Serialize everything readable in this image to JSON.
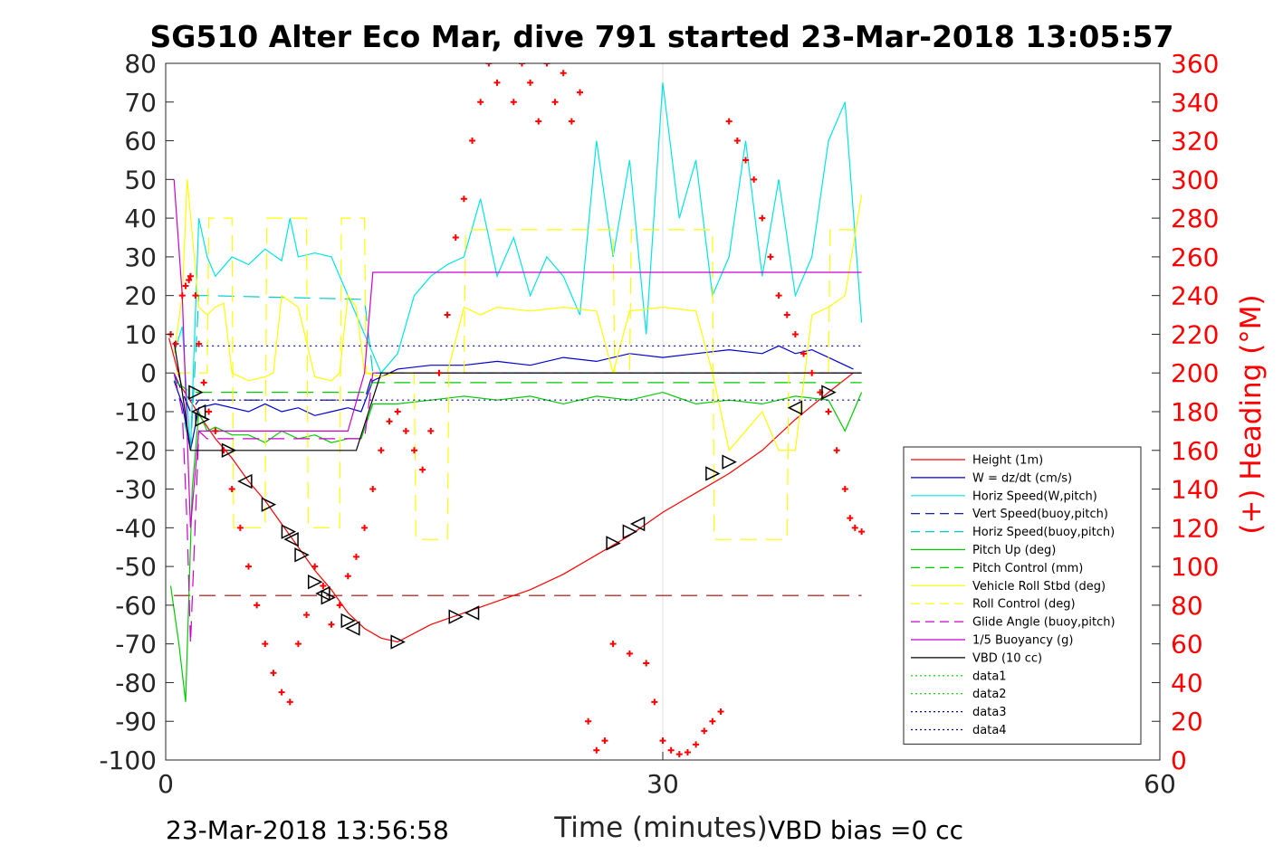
{
  "chart_data": {
    "type": "line",
    "title": "SG510 Alter Eco Mar, dive 791 started 23-Mar-2018 13:05:57",
    "xlabel": "Time (minutes)",
    "ylabel_right": "(+) Heading (°M)",
    "xlim": [
      0,
      60
    ],
    "ylim": [
      -100,
      80
    ],
    "ylim_right": [
      0,
      360
    ],
    "x_ticks": [
      "0",
      "30",
      "60"
    ],
    "y_ticks": [
      "80",
      "70",
      "60",
      "50",
      "40",
      "30",
      "20",
      "10",
      "0",
      "-10",
      "-20",
      "-30",
      "-40",
      "-50",
      "-60",
      "-70",
      "-80",
      "-90",
      "-100"
    ],
    "y_ticks_right": [
      "360",
      "340",
      "320",
      "300",
      "280",
      "260",
      "240",
      "220",
      "200",
      "180",
      "160",
      "140",
      "120",
      "100",
      "80",
      "60",
      "40",
      "20",
      "0"
    ],
    "grid": "x only at 30",
    "legend_position": "bottom-right",
    "footer_left": "23-Mar-2018 13:56:58",
    "footer_right": "VBD bias =0 cc",
    "series": [
      {
        "name": "Height (1m)",
        "color": "#ff0000",
        "style": "solid",
        "x": [
          0.2,
          1.0,
          1.6,
          2.2,
          3.0,
          4.0,
          5.0,
          6.0,
          7.0,
          8.0,
          9.0,
          10.0,
          11.0,
          12.0,
          13.0,
          14.0,
          16.0,
          18.0,
          20.0,
          22.0,
          24.0,
          26.0,
          28.0,
          30.0,
          32.0,
          34.0,
          36.0,
          38.0,
          40.0,
          41.5
        ],
        "y": [
          9,
          -4,
          -8,
          -12,
          -17,
          -22,
          -28,
          -33,
          -39,
          -45,
          -51,
          -56,
          -62,
          -66,
          -68.5,
          -69.5,
          -65,
          -62,
          -59,
          -56,
          -52,
          -47,
          -42,
          -36,
          -31,
          -26,
          -20,
          -12,
          -5,
          0
        ]
      },
      {
        "name": "W = dz/dt (cm/s)",
        "color": "#0000cc",
        "style": "solid",
        "x": [
          0.5,
          1.0,
          1.5,
          2.0,
          3.0,
          4.0,
          5.0,
          6.0,
          7.0,
          8.0,
          9.0,
          10.0,
          11.0,
          11.8,
          12.5,
          14.0,
          16.0,
          18.0,
          20.0,
          22.0,
          24.0,
          26.0,
          28.0,
          30.0,
          32.0,
          34.0,
          36.0,
          37.0,
          38.0,
          39.0,
          40.0,
          41.5
        ],
        "y": [
          -2,
          -8,
          -20,
          -9,
          -8,
          -9,
          -10,
          -8,
          -10,
          -9,
          -11,
          -10,
          -9,
          -10,
          -2,
          1,
          2,
          2,
          3,
          2,
          4,
          3,
          5,
          4,
          5,
          6,
          5,
          7,
          5,
          6,
          4,
          1
        ]
      },
      {
        "name": "Horiz Speed(W,pitch)",
        "color": "#00e5e5",
        "style": "solid",
        "x": [
          0.5,
          1.0,
          1.5,
          2.0,
          2.5,
          3.0,
          4.0,
          5.0,
          6.0,
          7.0,
          7.5,
          8.0,
          9.0,
          10.0,
          11.0,
          12.0,
          13.0,
          14.0,
          15.0,
          16.0,
          17.0,
          18.0,
          19.0,
          20.0,
          21.0,
          22.0,
          23.0,
          24.0,
          25.0,
          26.0,
          27.0,
          28.0,
          29.0,
          30.0,
          31.0,
          32.0,
          33.0,
          34.0,
          35.0,
          36.0,
          37.0,
          38.0,
          39.0,
          40.0,
          41.0,
          42.0
        ],
        "y": [
          5,
          12,
          -20,
          40,
          30,
          25,
          30,
          28,
          32,
          29,
          40,
          30,
          31,
          30,
          20,
          10,
          0,
          5,
          20,
          25,
          28,
          30,
          45,
          25,
          35,
          20,
          30,
          25,
          15,
          60,
          30,
          55,
          10,
          75,
          40,
          55,
          20,
          30,
          60,
          25,
          50,
          20,
          30,
          60,
          70,
          13
        ]
      },
      {
        "name": "Vert Speed(buoy,pitch)",
        "color": "#000099",
        "style": "dashed",
        "x": [
          0.5,
          1.5,
          2.0,
          2.5,
          12.0,
          12.5,
          42.0
        ],
        "y": [
          0,
          -10,
          -7,
          -7,
          -7,
          0,
          0
        ]
      },
      {
        "name": "Horiz Speed(buoy,pitch)",
        "color": "#00cccc",
        "style": "dashed",
        "x": [
          0.5,
          1.5,
          2.0,
          2.5,
          12.0,
          12.5,
          42.0
        ],
        "y": [
          0,
          -20,
          20,
          20,
          19,
          0,
          0
        ]
      },
      {
        "name": "Pitch Up (deg)",
        "color": "#00cc00",
        "style": "solid",
        "x": [
          0.3,
          0.8,
          1.2,
          1.6,
          2.0,
          2.5,
          3.0,
          4.0,
          5.0,
          6.0,
          7.0,
          8.0,
          9.0,
          10.0,
          11.0,
          11.8,
          12.5,
          14.0,
          16.0,
          18.0,
          20.0,
          22.0,
          24.0,
          26.0,
          28.0,
          30.0,
          32.0,
          34.0,
          36.0,
          38.0,
          40.0,
          41.0,
          42.0
        ],
        "y": [
          -55,
          -70,
          -85,
          -30,
          -10,
          -15,
          -14,
          -16,
          -16,
          -18,
          -15,
          -17,
          -16,
          -18,
          -17,
          -17,
          -8,
          -8,
          -7,
          -6,
          -7,
          -6,
          -8,
          -6,
          -7,
          -5,
          -8,
          -7,
          -8,
          -6,
          -7,
          -15,
          -5
        ]
      },
      {
        "name": "Pitch Control (mm)",
        "color": "#00cc00",
        "style": "dashed",
        "x": [
          0.5,
          1.5,
          2.0,
          2.5,
          12.0,
          12.5,
          42.0
        ],
        "y": [
          -2,
          -5,
          -5,
          -5,
          -5,
          -2.5,
          -2.5
        ]
      },
      {
        "name": "Vehicle Roll Stbd (deg)",
        "color": "#ffff00",
        "style": "solid",
        "x": [
          0.5,
          1.0,
          1.3,
          2.0,
          2.5,
          3.0,
          3.5,
          4.0,
          5.0,
          6.0,
          6.5,
          7.0,
          8.0,
          9.0,
          10.0,
          10.5,
          11.0,
          11.5,
          12.0,
          13.0,
          14.0,
          15.0,
          16.0,
          17.0,
          18.0,
          19.0,
          20.0,
          22.0,
          24.0,
          26.0,
          27.0,
          28.0,
          30.0,
          32.0,
          33.0,
          34.0,
          36.0,
          37.0,
          38.0,
          39.0,
          40.0,
          41.0,
          42.0
        ],
        "y": [
          5,
          20,
          50,
          17,
          15,
          17,
          18,
          0,
          -2,
          -1,
          0,
          20,
          17,
          -1,
          -2,
          0,
          20,
          17,
          0,
          -1,
          0,
          0,
          0,
          0,
          17,
          15,
          17,
          16,
          17,
          16,
          0,
          16,
          17,
          16,
          0,
          -20,
          -10,
          -20,
          -20,
          15,
          17,
          20,
          46
        ]
      },
      {
        "name": "Roll Control (deg)",
        "color": "#ffff00",
        "style": "dashed",
        "x": [
          0.5,
          2.5,
          2.6,
          4.0,
          4.1,
          6.0,
          6.1,
          8.5,
          8.6,
          10.5,
          10.6,
          12.0,
          12.1,
          15.0,
          15.1,
          17.0,
          17.1,
          18.0,
          18.1,
          27.0,
          27.1,
          28.0,
          28.1,
          33.0,
          33.1,
          37.5,
          37.6,
          40.0,
          40.1,
          42.0
        ],
        "y": [
          0,
          0,
          40,
          40,
          -40,
          -40,
          40,
          40,
          -40,
          -40,
          40,
          40,
          0,
          0,
          -43,
          -43,
          0,
          0,
          37,
          37,
          0,
          0,
          37,
          37,
          -43,
          -43,
          0,
          0,
          37,
          37
        ]
      },
      {
        "name": "Glide Angle (buoy,pitch)",
        "color": "#cc00cc",
        "style": "dashed",
        "x": [
          0.5,
          1.0,
          1.3,
          1.5,
          2.0,
          2.5,
          3.0,
          12.0,
          12.5,
          42.0
        ],
        "y": [
          0,
          -10,
          -40,
          -70,
          -15,
          -17,
          -17,
          -17,
          0,
          0
        ]
      },
      {
        "name": "1/5 Buoyancy (g)",
        "color": "#cc00cc",
        "style": "solid",
        "x": [
          0.5,
          1.0,
          1.5,
          2.0,
          3.0,
          11.0,
          12.0,
          12.5,
          42.0
        ],
        "y": [
          50,
          20,
          -40,
          -15,
          -15,
          -15,
          0,
          26,
          26
        ]
      },
      {
        "name": "VBD (10 cc)",
        "color": "#000000",
        "style": "solid",
        "x": [
          0.5,
          1.0,
          1.5,
          2.0,
          11.5,
          13.0,
          42.0
        ],
        "y": [
          8,
          -5,
          -20,
          -20,
          -20,
          0,
          0
        ]
      },
      {
        "name": "data1",
        "color": "#00cc00",
        "style": "dotted",
        "x": [],
        "y": []
      },
      {
        "name": "data2",
        "color": "#00cc00",
        "style": "dotted",
        "x": [],
        "y": []
      },
      {
        "name": "data3",
        "color": "#000099",
        "style": "dotted",
        "x": [
          0.5,
          42.0
        ],
        "y": [
          7,
          7
        ]
      },
      {
        "name": "data4",
        "color": "#000099",
        "style": "dotted",
        "x": [
          0.5,
          42.0
        ],
        "y": [
          -7,
          -7
        ]
      }
    ],
    "reference_line": {
      "color": "#aa0000",
      "style": "dashed",
      "x": [
        0.5,
        42.0
      ],
      "y": [
        -57.5,
        -57.5
      ]
    },
    "heading_points": {
      "color": "#ff0000",
      "marker": "+",
      "x": [
        0.3,
        0.6,
        1.0,
        1.2,
        1.4,
        1.5,
        1.8,
        2.0,
        2.3,
        2.6,
        3.0,
        3.5,
        4.0,
        4.5,
        5.0,
        5.5,
        6.0,
        6.5,
        7.0,
        7.5,
        8.0,
        8.5,
        9.0,
        9.5,
        10.0,
        10.5,
        11.0,
        11.5,
        12.0,
        12.5,
        13.0,
        13.5,
        14.0,
        14.5,
        15.0,
        15.5,
        16.0,
        16.5,
        17.0,
        17.5,
        18.0,
        18.5,
        19.0,
        19.5,
        20.0,
        21.0,
        21.5,
        22.0,
        22.5,
        23.0,
        23.5,
        24.0,
        24.5,
        25.0,
        25.5,
        26.0,
        26.5,
        27.0,
        28.0,
        29.0,
        29.5,
        30.0,
        30.5,
        31.0,
        31.5,
        32.0,
        32.5,
        33.0,
        33.5,
        34.0,
        34.5,
        35.0,
        35.5,
        36.0,
        36.5,
        37.0,
        37.5,
        38.0,
        38.5,
        39.0,
        39.5,
        40.0,
        40.5,
        41.0,
        41.3,
        41.6,
        42.0
      ],
      "y": [
        220,
        215,
        240,
        245,
        248,
        250,
        240,
        215,
        195,
        180,
        170,
        160,
        140,
        120,
        100,
        80,
        60,
        45,
        35,
        30,
        60,
        75,
        100,
        90,
        70,
        80,
        95,
        105,
        120,
        140,
        160,
        175,
        180,
        170,
        160,
        150,
        170,
        200,
        230,
        270,
        290,
        320,
        340,
        360,
        350,
        340,
        360,
        350,
        330,
        360,
        340,
        355,
        330,
        345,
        20,
        5,
        10,
        60,
        55,
        50,
        30,
        10,
        5,
        3,
        4,
        8,
        15,
        20,
        25,
        330,
        320,
        310,
        300,
        280,
        260,
        240,
        230,
        220,
        210,
        200,
        190,
        180,
        160,
        140,
        125,
        120,
        118
      ]
    },
    "triangle_markers": {
      "x": [
        1.8,
        2.0,
        2.2,
        3.8,
        4.8,
        6.2,
        7.4,
        7.6,
        8.2,
        9.0,
        9.5,
        9.8,
        11.0,
        11.3,
        14.0,
        17.5,
        18.5,
        27.0,
        28.0,
        28.5,
        33.0,
        34.0,
        38.0,
        40.0
      ],
      "y": [
        -5,
        -10,
        -12,
        -20,
        -28,
        -34,
        -41,
        -43,
        -47,
        -54,
        -57,
        -58,
        -64,
        -66,
        -69.5,
        -63,
        -62,
        -44,
        -41,
        -39,
        -26,
        -23,
        -9,
        -5
      ]
    }
  }
}
